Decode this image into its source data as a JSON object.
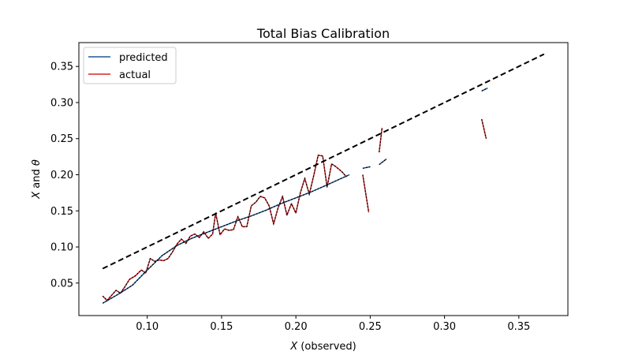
{
  "chart_data": {
    "type": "line",
    "title": "Total Bias Calibration",
    "xlabel": "X (observed)",
    "ylabel": "X and θ",
    "xlim": [
      0.054,
      0.383
    ],
    "ylim": [
      0.005,
      0.383
    ],
    "xticks": [
      "0.10",
      "0.15",
      "0.20",
      "0.25",
      "0.30",
      "0.35"
    ],
    "yticks": [
      "0.05",
      "0.10",
      "0.15",
      "0.20",
      "0.25",
      "0.30",
      "0.35"
    ],
    "legend": {
      "position": "top-left",
      "entries": [
        "predicted",
        "actual"
      ]
    },
    "colors": {
      "predicted": "#1f5a96",
      "actual": "#d62728",
      "diagonal": "#000000"
    },
    "series": [
      {
        "name": "predicted",
        "segments": [
          [
            [
              0.07,
              0.022
            ],
            [
              0.08,
              0.034
            ],
            [
              0.09,
              0.047
            ],
            [
              0.1,
              0.068
            ],
            [
              0.11,
              0.088
            ],
            [
              0.12,
              0.102
            ],
            [
              0.13,
              0.112
            ],
            [
              0.14,
              0.12
            ],
            [
              0.15,
              0.128
            ],
            [
              0.16,
              0.136
            ],
            [
              0.17,
              0.143
            ],
            [
              0.18,
              0.151
            ],
            [
              0.19,
              0.16
            ],
            [
              0.2,
              0.168
            ],
            [
              0.21,
              0.176
            ],
            [
              0.22,
              0.185
            ],
            [
              0.236,
              0.2
            ]
          ],
          [
            [
              0.245,
              0.209
            ],
            [
              0.25,
              0.211
            ]
          ],
          [
            [
              0.256,
              0.214
            ],
            [
              0.261,
              0.222
            ]
          ],
          [
            [
              0.325,
              0.316
            ],
            [
              0.329,
              0.32
            ]
          ]
        ]
      },
      {
        "name": "actual",
        "segments": [
          [
            [
              0.07,
              0.032
            ],
            [
              0.073,
              0.026
            ],
            [
              0.076,
              0.033
            ],
            [
              0.079,
              0.04
            ],
            [
              0.082,
              0.036
            ],
            [
              0.085,
              0.045
            ],
            [
              0.088,
              0.055
            ],
            [
              0.092,
              0.06
            ],
            [
              0.096,
              0.068
            ],
            [
              0.099,
              0.064
            ],
            [
              0.102,
              0.084
            ],
            [
              0.105,
              0.08
            ],
            [
              0.108,
              0.082
            ],
            [
              0.111,
              0.081
            ],
            [
              0.114,
              0.084
            ],
            [
              0.117,
              0.093
            ],
            [
              0.12,
              0.104
            ],
            [
              0.123,
              0.111
            ],
            [
              0.126,
              0.105
            ],
            [
              0.129,
              0.115
            ],
            [
              0.132,
              0.118
            ],
            [
              0.135,
              0.113
            ],
            [
              0.138,
              0.121
            ],
            [
              0.141,
              0.112
            ],
            [
              0.144,
              0.118
            ],
            [
              0.146,
              0.147
            ],
            [
              0.149,
              0.117
            ],
            [
              0.152,
              0.125
            ],
            [
              0.155,
              0.123
            ],
            [
              0.158,
              0.124
            ],
            [
              0.161,
              0.142
            ],
            [
              0.164,
              0.128
            ],
            [
              0.167,
              0.128
            ],
            [
              0.17,
              0.157
            ],
            [
              0.173,
              0.162
            ],
            [
              0.176,
              0.17
            ],
            [
              0.179,
              0.168
            ],
            [
              0.182,
              0.157
            ],
            [
              0.185,
              0.132
            ],
            [
              0.188,
              0.154
            ],
            [
              0.191,
              0.17
            ],
            [
              0.194,
              0.144
            ],
            [
              0.197,
              0.16
            ],
            [
              0.2,
              0.147
            ],
            [
              0.203,
              0.175
            ],
            [
              0.206,
              0.195
            ],
            [
              0.209,
              0.173
            ],
            [
              0.212,
              0.199
            ],
            [
              0.215,
              0.227
            ],
            [
              0.218,
              0.226
            ],
            [
              0.221,
              0.183
            ],
            [
              0.224,
              0.215
            ],
            [
              0.227,
              0.211
            ],
            [
              0.231,
              0.204
            ],
            [
              0.234,
              0.197
            ]
          ],
          [
            [
              0.245,
              0.2
            ],
            [
              0.249,
              0.148
            ]
          ],
          [
            [
              0.256,
              0.231
            ],
            [
              0.258,
              0.265
            ]
          ],
          [
            [
              0.325,
              0.277
            ],
            [
              0.328,
              0.25
            ]
          ]
        ]
      },
      {
        "name": "",
        "line_style": "dashed",
        "points": [
          [
            0.07,
            0.07
          ],
          [
            0.367,
            0.367
          ]
        ]
      }
    ]
  }
}
